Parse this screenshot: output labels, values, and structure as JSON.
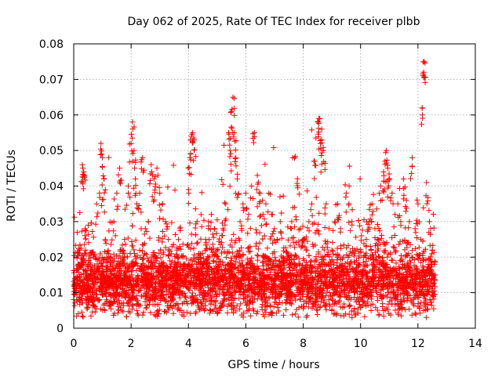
{
  "chart_data": {
    "type": "scatter",
    "title": "Day 062 of 2025, Rate Of TEC Index for receiver plbb",
    "xlabel": "GPS time / hours",
    "ylabel": "ROTI / TECUs",
    "xlim": [
      0,
      14
    ],
    "ylim": [
      0,
      0.08
    ],
    "xticks": [
      "0",
      "2",
      "4",
      "6",
      "8",
      "10",
      "12",
      "14"
    ],
    "yticks": [
      "0",
      "0.01",
      "0.02",
      "0.03",
      "0.04",
      "0.05",
      "0.06",
      "0.07",
      "0.08"
    ],
    "xtick_values": [
      0,
      2,
      4,
      6,
      8,
      10,
      12,
      14
    ],
    "ytick_values": [
      0,
      0.01,
      0.02,
      0.03,
      0.04,
      0.05,
      0.06,
      0.07,
      0.08
    ],
    "grid": true,
    "marker": "+",
    "color": "#ff0000",
    "series": [
      {
        "points": [
          [
            0.05,
            0.012
          ],
          [
            0.1,
            0.008
          ],
          [
            0.15,
            0.018
          ],
          [
            0.2,
            0.022
          ],
          [
            0.25,
            0.01
          ],
          [
            0.3,
            0.046
          ],
          [
            0.32,
            0.045
          ],
          [
            0.35,
            0.044
          ],
          [
            0.4,
            0.028
          ],
          [
            0.45,
            0.015
          ],
          [
            0.5,
            0.009
          ],
          [
            0.6,
            0.014
          ],
          [
            0.7,
            0.02
          ],
          [
            0.8,
            0.035
          ],
          [
            0.9,
            0.038
          ],
          [
            0.95,
            0.052
          ],
          [
            1.0,
            0.048
          ],
          [
            1.05,
            0.042
          ],
          [
            1.1,
            0.025
          ],
          [
            1.2,
            0.012
          ],
          [
            1.3,
            0.018
          ],
          [
            1.4,
            0.03
          ],
          [
            1.5,
            0.038
          ],
          [
            1.6,
            0.045
          ],
          [
            1.7,
            0.022
          ],
          [
            1.8,
            0.015
          ],
          [
            1.9,
            0.04
          ],
          [
            2.0,
            0.052
          ],
          [
            2.05,
            0.058
          ],
          [
            2.1,
            0.05
          ],
          [
            2.15,
            0.042
          ],
          [
            2.2,
            0.035
          ],
          [
            2.3,
            0.038
          ],
          [
            2.4,
            0.048
          ],
          [
            2.5,
            0.028
          ],
          [
            2.6,
            0.03
          ],
          [
            2.7,
            0.046
          ],
          [
            2.8,
            0.042
          ],
          [
            2.9,
            0.045
          ],
          [
            3.0,
            0.038
          ],
          [
            3.1,
            0.035
          ],
          [
            3.2,
            0.03
          ],
          [
            3.3,
            0.025
          ],
          [
            3.4,
            0.018
          ],
          [
            3.5,
            0.012
          ],
          [
            3.6,
            0.022
          ],
          [
            3.7,
            0.028
          ],
          [
            3.8,
            0.02
          ],
          [
            3.9,
            0.015
          ],
          [
            4.0,
            0.039
          ],
          [
            4.05,
            0.048
          ],
          [
            4.1,
            0.054
          ],
          [
            4.15,
            0.055
          ],
          [
            4.2,
            0.053
          ],
          [
            4.3,
            0.03
          ],
          [
            4.4,
            0.02
          ],
          [
            4.5,
            0.015
          ],
          [
            4.6,
            0.025
          ],
          [
            4.7,
            0.03
          ],
          [
            4.8,
            0.032
          ],
          [
            4.9,
            0.028
          ],
          [
            5.0,
            0.022
          ],
          [
            5.1,
            0.018
          ],
          [
            5.2,
            0.028
          ],
          [
            5.3,
            0.035
          ],
          [
            5.4,
            0.055
          ],
          [
            5.45,
            0.05
          ],
          [
            5.5,
            0.061
          ],
          [
            5.55,
            0.065
          ],
          [
            5.6,
            0.055
          ],
          [
            5.65,
            0.048
          ],
          [
            5.7,
            0.042
          ],
          [
            5.8,
            0.03
          ],
          [
            5.9,
            0.035
          ],
          [
            6.0,
            0.038
          ],
          [
            6.1,
            0.032
          ],
          [
            6.2,
            0.04
          ],
          [
            6.3,
            0.055
          ],
          [
            6.4,
            0.043
          ],
          [
            6.5,
            0.038
          ],
          [
            6.6,
            0.032
          ],
          [
            6.7,
            0.035
          ],
          [
            6.8,
            0.038
          ],
          [
            6.9,
            0.032
          ],
          [
            7.0,
            0.028
          ],
          [
            7.1,
            0.025
          ],
          [
            7.2,
            0.03
          ],
          [
            7.3,
            0.02
          ],
          [
            7.4,
            0.015
          ],
          [
            7.5,
            0.018
          ],
          [
            7.6,
            0.03
          ],
          [
            7.7,
            0.034
          ],
          [
            7.8,
            0.042
          ],
          [
            7.9,
            0.028
          ],
          [
            8.0,
            0.025
          ],
          [
            8.1,
            0.022
          ],
          [
            8.2,
            0.03
          ],
          [
            8.3,
            0.035
          ],
          [
            8.4,
            0.047
          ],
          [
            8.5,
            0.058
          ],
          [
            8.55,
            0.059
          ],
          [
            8.6,
            0.052
          ],
          [
            8.65,
            0.056
          ],
          [
            8.7,
            0.05
          ],
          [
            8.8,
            0.035
          ],
          [
            8.9,
            0.028
          ],
          [
            9.0,
            0.022
          ],
          [
            9.1,
            0.03
          ],
          [
            9.2,
            0.035
          ],
          [
            9.3,
            0.028
          ],
          [
            9.4,
            0.02
          ],
          [
            9.5,
            0.038
          ],
          [
            9.6,
            0.04
          ],
          [
            9.7,
            0.03
          ],
          [
            9.8,
            0.022
          ],
          [
            9.9,
            0.018
          ],
          [
            10.0,
            0.016
          ],
          [
            10.1,
            0.02
          ],
          [
            10.2,
            0.025
          ],
          [
            10.3,
            0.03
          ],
          [
            10.4,
            0.035
          ],
          [
            10.5,
            0.028
          ],
          [
            10.6,
            0.025
          ],
          [
            10.7,
            0.04
          ],
          [
            10.8,
            0.044
          ],
          [
            10.85,
            0.047
          ],
          [
            10.9,
            0.05
          ],
          [
            10.95,
            0.045
          ],
          [
            11.0,
            0.042
          ],
          [
            11.1,
            0.038
          ],
          [
            11.2,
            0.032
          ],
          [
            11.3,
            0.035
          ],
          [
            11.4,
            0.03
          ],
          [
            11.5,
            0.042
          ],
          [
            11.6,
            0.036
          ],
          [
            11.7,
            0.03
          ],
          [
            11.8,
            0.048
          ],
          [
            11.9,
            0.028
          ],
          [
            12.0,
            0.035
          ],
          [
            12.1,
            0.025
          ],
          [
            12.15,
            0.062
          ],
          [
            12.2,
            0.072
          ],
          [
            12.22,
            0.075
          ],
          [
            12.3,
            0.041
          ],
          [
            12.4,
            0.03
          ],
          [
            12.5,
            0.022
          ],
          [
            12.6,
            0.015
          ]
        ]
      }
    ],
    "background_band": {
      "x_range": [
        0,
        12.6
      ],
      "y_center": 0.013,
      "y_spread": 0.008,
      "density_points": 4200
    }
  }
}
